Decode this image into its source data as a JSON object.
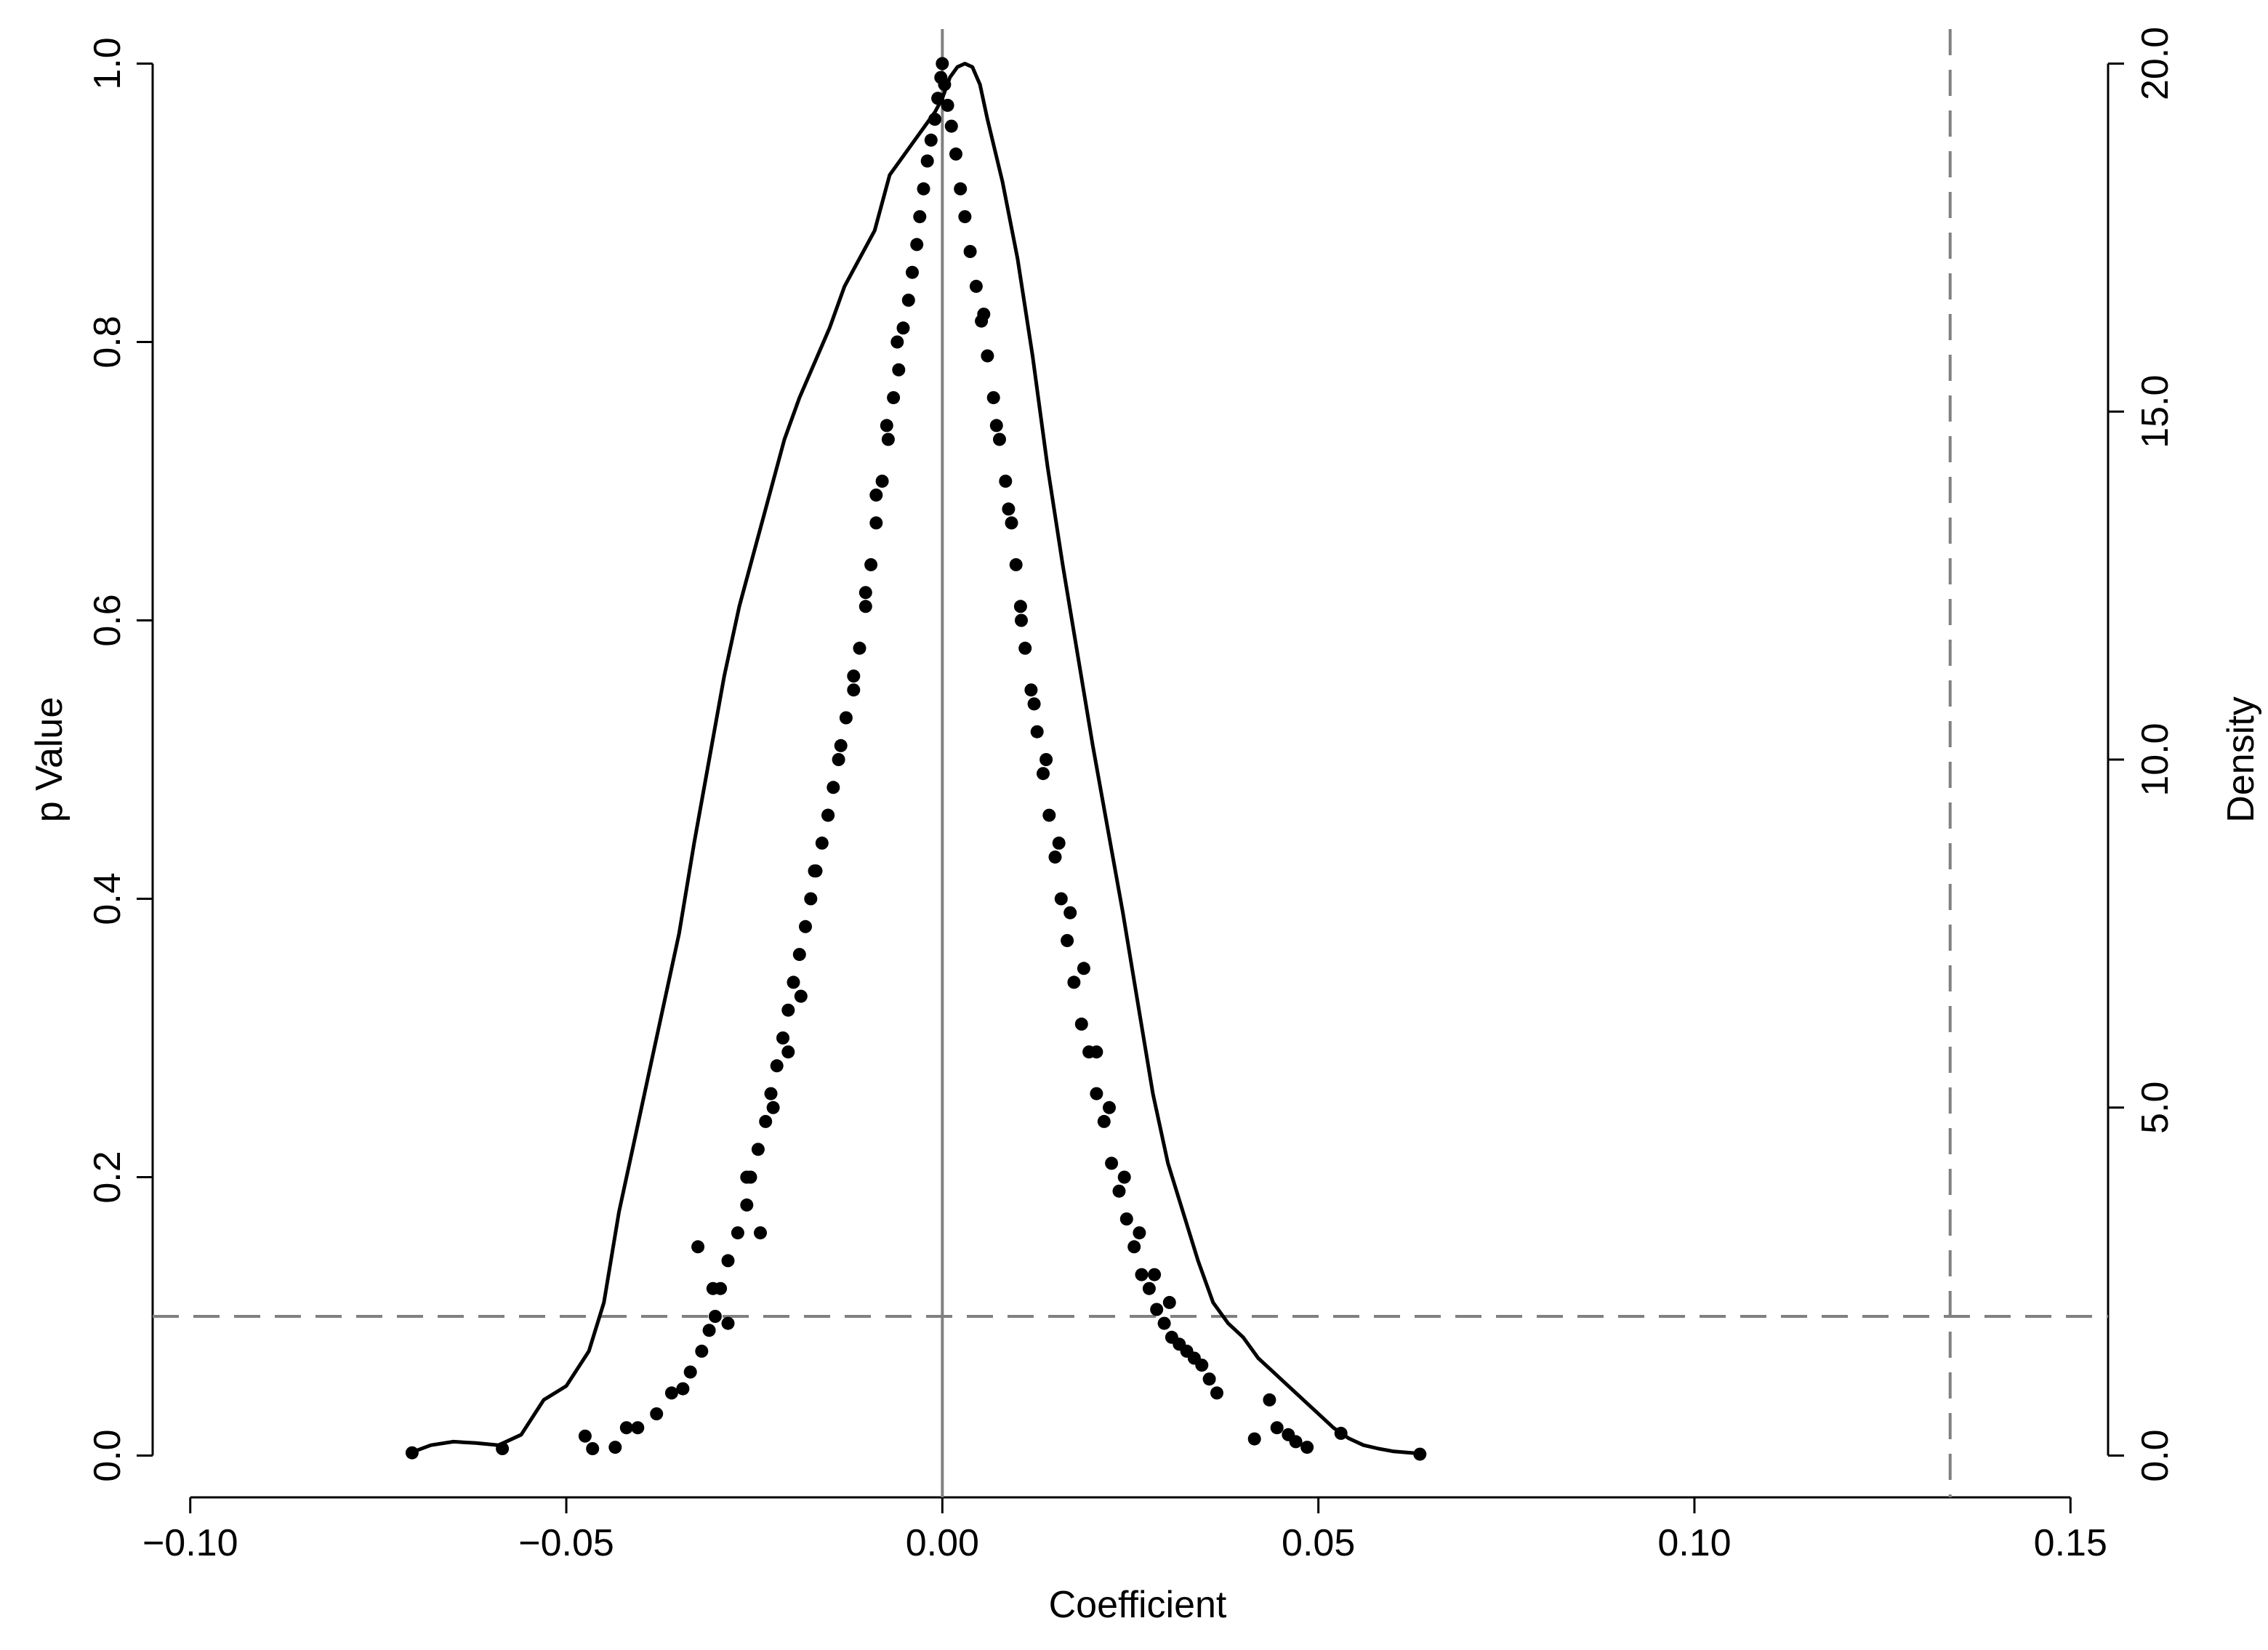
{
  "chart_data": {
    "type": "scatter",
    "title": "",
    "xlabel": "Coefficient",
    "ylabel": "p Value",
    "y2label": "Density",
    "xlim": [
      -0.105,
      0.155
    ],
    "ylim": [
      -0.03,
      1.03
    ],
    "y2lim": [
      -0.6,
      20.6
    ],
    "x_ticks": [
      -0.1,
      -0.05,
      0.0,
      0.05,
      0.1,
      0.15
    ],
    "x_tick_labels": [
      "−0.10",
      "−0.05",
      "0.00",
      "0.05",
      "0.10",
      "0.15"
    ],
    "y_ticks": [
      0.0,
      0.2,
      0.4,
      0.6,
      0.8,
      1.0
    ],
    "y_tick_labels": [
      "0.0",
      "0.2",
      "0.4",
      "0.6",
      "0.8",
      "1.0"
    ],
    "y2_ticks": [
      0,
      5,
      10,
      15,
      20
    ],
    "y2_tick_labels": [
      "0.0",
      "5.0",
      "10.0",
      "15.0",
      "20.0"
    ],
    "grid": false,
    "legend": "none",
    "reference_lines": [
      {
        "orientation": "vertical",
        "x": 0.0,
        "style": "solid",
        "color": "#808080"
      },
      {
        "orientation": "vertical",
        "x": 0.134,
        "style": "dashed",
        "color": "#808080"
      },
      {
        "orientation": "horizontal",
        "y": 0.1,
        "style": "dashed",
        "color": "#808080"
      }
    ],
    "series": [
      {
        "type": "scatter",
        "axis": "left",
        "color": "#000000",
        "x": [
          -0.0705,
          -0.0585,
          -0.0475,
          -0.0465,
          -0.0435,
          -0.042,
          -0.0405,
          -0.038,
          -0.036,
          -0.0345,
          -0.0335,
          -0.032,
          -0.031,
          -0.0302,
          -0.0295,
          -0.0285,
          -0.0272,
          -0.026,
          -0.0255,
          -0.0245,
          -0.0235,
          -0.0228,
          -0.022,
          -0.0212,
          -0.0205,
          -0.0198,
          -0.019,
          -0.0182,
          -0.0175,
          -0.0168,
          -0.016,
          -0.0152,
          -0.0145,
          -0.0138,
          -0.0128,
          -0.0118,
          -0.011,
          -0.0102,
          -0.0095,
          -0.0088,
          -0.008,
          -0.0072,
          -0.0065,
          -0.0058,
          -0.0052,
          -0.0045,
          -0.004,
          -0.0034,
          -0.003,
          -0.0025,
          -0.002,
          -0.0015,
          -0.001,
          -0.0006,
          -0.0002,
          0.0,
          0.0003,
          0.0007,
          0.0012,
          0.0018,
          0.0024,
          0.003,
          0.0037,
          0.0045,
          0.0052,
          0.006,
          0.0068,
          0.0076,
          0.0084,
          0.0092,
          0.0098,
          0.0104,
          0.011,
          0.0118,
          0.0126,
          0.0134,
          0.0142,
          0.015,
          0.0158,
          0.0166,
          0.0175,
          0.0185,
          0.0195,
          0.0205,
          0.0215,
          0.0225,
          0.0235,
          0.0245,
          0.0255,
          0.0265,
          0.0275,
          0.0285,
          0.0295,
          0.0305,
          0.0315,
          0.0325,
          0.0335,
          0.0345,
          0.0355,
          0.0365,
          0.0415,
          0.0435,
          0.0445,
          0.046,
          0.047,
          0.0485,
          0.053,
          0.0635,
          -0.0325,
          -0.0305,
          -0.0285,
          -0.026,
          -0.0242,
          -0.0225,
          -0.0205,
          -0.0188,
          -0.017,
          -0.0152,
          -0.0135,
          -0.0118,
          -0.0102,
          -0.0088,
          -0.0074,
          -0.006,
          0.0055,
          0.0072,
          0.0088,
          0.0105,
          0.0122,
          0.0138,
          0.0155,
          0.017,
          0.0188,
          0.0205,
          0.0222,
          0.0242,
          0.0262,
          0.0282,
          0.0302
        ],
        "y": [
          0.002,
          0.005,
          0.014,
          0.005,
          0.006,
          0.02,
          0.02,
          0.03,
          0.045,
          0.048,
          0.06,
          0.075,
          0.09,
          0.1,
          0.12,
          0.14,
          0.16,
          0.18,
          0.2,
          0.22,
          0.24,
          0.26,
          0.28,
          0.3,
          0.32,
          0.34,
          0.36,
          0.38,
          0.4,
          0.42,
          0.44,
          0.46,
          0.48,
          0.5,
          0.53,
          0.56,
          0.58,
          0.61,
          0.64,
          0.67,
          0.7,
          0.73,
          0.76,
          0.78,
          0.81,
          0.83,
          0.85,
          0.87,
          0.89,
          0.91,
          0.93,
          0.945,
          0.96,
          0.975,
          0.99,
          1.0,
          0.985,
          0.97,
          0.955,
          0.935,
          0.91,
          0.89,
          0.865,
          0.84,
          0.815,
          0.79,
          0.76,
          0.73,
          0.7,
          0.67,
          0.64,
          0.61,
          0.58,
          0.55,
          0.52,
          0.49,
          0.46,
          0.43,
          0.4,
          0.37,
          0.34,
          0.31,
          0.29,
          0.26,
          0.24,
          0.21,
          0.19,
          0.17,
          0.15,
          0.13,
          0.12,
          0.105,
          0.095,
          0.085,
          0.08,
          0.075,
          0.07,
          0.065,
          0.055,
          0.045,
          0.012,
          0.04,
          0.02,
          0.015,
          0.01,
          0.006,
          0.016,
          0.001,
          0.15,
          0.12,
          0.095,
          0.2,
          0.16,
          0.25,
          0.29,
          0.33,
          0.42,
          0.46,
          0.51,
          0.55,
          0.62,
          0.69,
          0.74,
          0.8,
          0.82,
          0.74,
          0.68,
          0.6,
          0.54,
          0.5,
          0.44,
          0.39,
          0.35,
          0.29,
          0.25,
          0.2,
          0.16,
          0.13,
          0.11
        ]
      },
      {
        "type": "line",
        "axis": "right",
        "name": "",
        "color": "#000000",
        "x": [
          -0.0705,
          -0.068,
          -0.065,
          -0.062,
          -0.059,
          -0.056,
          -0.053,
          -0.05,
          -0.047,
          -0.045,
          -0.043,
          -0.041,
          -0.039,
          -0.037,
          -0.035,
          -0.033,
          -0.031,
          -0.029,
          -0.027,
          -0.025,
          -0.023,
          -0.021,
          -0.019,
          -0.017,
          -0.015,
          -0.013,
          -0.011,
          -0.009,
          -0.007,
          -0.005,
          -0.003,
          -0.001,
          0.0,
          0.001,
          0.002,
          0.003,
          0.004,
          0.005,
          0.006,
          0.008,
          0.01,
          0.012,
          0.014,
          0.016,
          0.018,
          0.02,
          0.022,
          0.024,
          0.026,
          0.028,
          0.03,
          0.032,
          0.034,
          0.036,
          0.038,
          0.04,
          0.042,
          0.044,
          0.046,
          0.048,
          0.05,
          0.052,
          0.054,
          0.056,
          0.058,
          0.06,
          0.0635
        ],
        "y": [
          0.05,
          0.15,
          0.2,
          0.18,
          0.15,
          0.3,
          0.8,
          1.0,
          1.5,
          2.2,
          3.5,
          4.5,
          5.5,
          6.5,
          7.5,
          8.8,
          10.0,
          11.2,
          12.2,
          13.0,
          13.8,
          14.6,
          15.2,
          15.7,
          16.2,
          16.8,
          17.2,
          17.6,
          18.4,
          18.7,
          19.0,
          19.3,
          19.5,
          19.8,
          19.95,
          20.0,
          19.95,
          19.7,
          19.2,
          18.3,
          17.2,
          15.8,
          14.2,
          12.8,
          11.5,
          10.2,
          9.0,
          7.8,
          6.5,
          5.2,
          4.2,
          3.5,
          2.8,
          2.2,
          1.9,
          1.7,
          1.4,
          1.2,
          1.0,
          0.8,
          0.6,
          0.4,
          0.25,
          0.15,
          0.1,
          0.06,
          0.03
        ]
      }
    ]
  }
}
